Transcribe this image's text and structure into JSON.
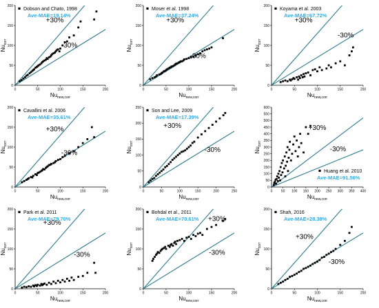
{
  "colors": {
    "line": "#2a7a8c",
    "marker": "#000000",
    "mae_text": "#33aadd",
    "axis": "#000000"
  },
  "chart_data": [
    {
      "type": "scatter",
      "legend": "Dobson and Chato, 1998",
      "mae": "Ave-MAE=19.14%",
      "xlabel": "Nu",
      "xlabel_sub": "new,corr",
      "ylabel": "Nu",
      "ylabel_sub": "corr",
      "xlim": [
        0,
        200
      ],
      "ylim": [
        0,
        200
      ],
      "xticks": [
        0,
        50,
        100,
        150,
        200
      ],
      "yticks": [
        0,
        50,
        100,
        150,
        200
      ],
      "upper_label": "+30%",
      "lower_label": "-30%",
      "upper_label_at": [
        88,
        158
      ],
      "lower_label_at": [
        120,
        95
      ],
      "legend_pos": "top-left",
      "x": [
        10,
        14,
        18,
        22,
        25,
        28,
        32,
        35,
        38,
        40,
        42,
        45,
        48,
        50,
        52,
        55,
        58,
        60,
        62,
        65,
        68,
        70,
        72,
        75,
        78,
        80,
        82,
        85,
        88,
        90,
        92,
        95,
        98,
        100,
        105,
        110,
        115,
        120,
        130,
        140,
        145,
        175,
        180
      ],
      "y": [
        10,
        13,
        17,
        20,
        24,
        26,
        30,
        33,
        36,
        38,
        40,
        44,
        46,
        48,
        50,
        52,
        55,
        58,
        60,
        62,
        64,
        68,
        66,
        70,
        72,
        75,
        78,
        80,
        82,
        85,
        88,
        90,
        85,
        92,
        100,
        108,
        110,
        120,
        125,
        145,
        160,
        165,
        185
      ]
    },
    {
      "type": "scatter",
      "legend": "Moser et al. 1998",
      "mae": "Ave-MAE=37.24%",
      "xlabel": "Nu",
      "xlabel_sub": "new,corr",
      "ylabel": "Nu",
      "ylabel_sub": "corr",
      "xlim": [
        0,
        200
      ],
      "ylim": [
        0,
        200
      ],
      "xticks": [
        0,
        50,
        100,
        150,
        200
      ],
      "yticks": [
        0,
        50,
        100,
        150,
        200
      ],
      "upper_label": "+30%",
      "lower_label": "-30%",
      "upper_label_at": [
        70,
        158
      ],
      "lower_label_at": [
        120,
        68
      ],
      "legend_pos": "top-left",
      "x": [
        15,
        20,
        25,
        28,
        30,
        35,
        38,
        40,
        42,
        45,
        48,
        50,
        52,
        55,
        58,
        60,
        62,
        65,
        68,
        70,
        72,
        75,
        78,
        80,
        82,
        85,
        88,
        90,
        95,
        100,
        105,
        110,
        115,
        120,
        125,
        130,
        135,
        140,
        145,
        150,
        175
      ],
      "y": [
        15,
        18,
        20,
        22,
        25,
        27,
        28,
        30,
        32,
        35,
        36,
        38,
        40,
        42,
        44,
        45,
        47,
        48,
        50,
        52,
        54,
        55,
        57,
        58,
        60,
        60,
        62,
        65,
        66,
        68,
        70,
        72,
        75,
        78,
        80,
        85,
        88,
        90,
        92,
        95,
        118
      ]
    },
    {
      "type": "scatter",
      "legend": "Koyama et al. 2003",
      "mae": "Ave-MAE=67.72%",
      "xlabel": "Nu",
      "xlabel_sub": "new,corr",
      "ylabel": "Nu",
      "ylabel_sub": "corr",
      "xlim": [
        0,
        200
      ],
      "ylim": [
        0,
        200
      ],
      "xticks": [
        0,
        50,
        100,
        150,
        200
      ],
      "yticks": [
        0,
        50,
        100,
        150,
        200
      ],
      "upper_label": "+30%",
      "lower_label": "-30%",
      "upper_label_at": [
        70,
        158
      ],
      "lower_label_at": [
        162,
        120
      ],
      "legend_pos": "top-left",
      "x": [
        20,
        25,
        30,
        35,
        40,
        42,
        45,
        48,
        50,
        55,
        58,
        60,
        62,
        65,
        68,
        70,
        72,
        75,
        80,
        85,
        90,
        95,
        100,
        105,
        110,
        120,
        125,
        130,
        140,
        150,
        160,
        170,
        175,
        178
      ],
      "y": [
        8,
        10,
        12,
        10,
        14,
        12,
        15,
        18,
        16,
        20,
        14,
        22,
        18,
        25,
        20,
        28,
        22,
        30,
        32,
        25,
        38,
        40,
        35,
        45,
        38,
        42,
        50,
        45,
        55,
        60,
        50,
        75,
        85,
        95
      ]
    },
    {
      "type": "scatter",
      "legend": "Cavallini et al. 2006",
      "mae": "Ave-MAE=35.61%",
      "xlabel": "Nu",
      "xlabel_sub": "new,corr",
      "ylabel": "Nu",
      "ylabel_sub": "corr",
      "xlim": [
        0,
        200
      ],
      "ylim": [
        0,
        200
      ],
      "xticks": [
        0,
        50,
        100,
        150,
        200
      ],
      "yticks": [
        0,
        50,
        100,
        150,
        200
      ],
      "upper_label": "+30%",
      "lower_label": "-30%",
      "upper_label_at": [
        88,
        140
      ],
      "lower_label_at": [
        120,
        80
      ],
      "legend_pos": "top-left",
      "x": [
        15,
        20,
        25,
        28,
        30,
        35,
        38,
        40,
        45,
        48,
        50,
        52,
        55,
        58,
        60,
        62,
        65,
        68,
        70,
        72,
        75,
        78,
        80,
        85,
        88,
        90,
        95,
        100,
        105,
        110,
        120,
        130,
        140,
        150,
        160,
        170,
        175
      ],
      "y": [
        12,
        15,
        18,
        20,
        22,
        25,
        24,
        28,
        32,
        30,
        35,
        36,
        38,
        40,
        42,
        45,
        44,
        48,
        50,
        52,
        55,
        56,
        58,
        60,
        62,
        65,
        68,
        70,
        75,
        78,
        85,
        90,
        100,
        110,
        120,
        150,
        125
      ]
    },
    {
      "type": "scatter",
      "legend": "Son and Lee, 2009",
      "mae": "Ave-MAE=17.39%",
      "xlabel": "Nu",
      "xlabel_sub": "new,corr",
      "ylabel": "Nu",
      "ylabel_sub": "corr",
      "xlim": [
        0,
        250
      ],
      "ylim": [
        0,
        250
      ],
      "xticks": [
        0,
        50,
        100,
        150,
        200,
        250
      ],
      "yticks": [
        0,
        50,
        100,
        150,
        200,
        250
      ],
      "upper_label": "+30%",
      "lower_label": "-30%",
      "upper_label_at": [
        80,
        185
      ],
      "lower_label_at": [
        190,
        110
      ],
      "legend_pos": "top-left",
      "x": [
        15,
        20,
        25,
        30,
        35,
        40,
        45,
        50,
        55,
        60,
        65,
        70,
        75,
        80,
        85,
        90,
        95,
        100,
        105,
        110,
        115,
        120,
        125,
        130,
        135,
        140,
        150,
        160,
        170,
        180,
        190,
        200,
        210,
        220,
        225
      ],
      "y": [
        15,
        20,
        25,
        28,
        35,
        40,
        45,
        50,
        55,
        62,
        66,
        72,
        78,
        85,
        90,
        95,
        100,
        105,
        110,
        112,
        115,
        120,
        125,
        130,
        138,
        142,
        155,
        165,
        175,
        185,
        195,
        205,
        215,
        225,
        232
      ]
    },
    {
      "type": "scatter",
      "legend": "Huang et al. 2010",
      "mae": "Ave-MAE=91.56%",
      "xlabel": "Nu",
      "xlabel_sub": "new,corr",
      "ylabel": "Nu",
      "ylabel_sub": "corr",
      "xlim": [
        0,
        400
      ],
      "ylim": [
        0,
        600
      ],
      "xticks": [
        0,
        50,
        100,
        150,
        200,
        250,
        300,
        350,
        400
      ],
      "yticks": [
        0,
        50,
        100,
        150,
        200,
        250,
        300,
        350,
        400,
        450,
        500,
        550,
        600
      ],
      "upper_label": "+30%",
      "lower_label": "-30%",
      "upper_label_at": [
        200,
        430
      ],
      "lower_label_at": [
        290,
        270
      ],
      "legend_pos": "bottom-right",
      "x": [
        10,
        12,
        15,
        18,
        20,
        22,
        25,
        28,
        30,
        32,
        35,
        38,
        40,
        42,
        45,
        48,
        50,
        55,
        58,
        60,
        62,
        65,
        68,
        70,
        72,
        75,
        78,
        80,
        85,
        90,
        95,
        100,
        105,
        110,
        115,
        120,
        125,
        130,
        140,
        150,
        160,
        170
      ],
      "y": [
        15,
        30,
        40,
        55,
        25,
        60,
        80,
        45,
        100,
        70,
        120,
        50,
        150,
        90,
        180,
        110,
        200,
        140,
        230,
        80,
        160,
        260,
        190,
        300,
        120,
        220,
        280,
        340,
        200,
        250,
        320,
        380,
        270,
        350,
        230,
        300,
        400,
        330,
        260,
        450,
        400,
        460
      ]
    },
    {
      "type": "scatter",
      "legend": "Park et al. 2011",
      "mae": "Ave-MAE=79.70%",
      "xlabel": "Nu",
      "xlabel_sub": "new,corr",
      "ylabel": "Nu",
      "ylabel_sub": "corr",
      "xlim": [
        0,
        200
      ],
      "ylim": [
        0,
        200
      ],
      "xticks": [
        0,
        50,
        100,
        150,
        200
      ],
      "yticks": [
        0,
        50,
        100,
        150,
        200
      ],
      "upper_label": "+30%",
      "lower_label": "-30%",
      "upper_label_at": [
        82,
        160
      ],
      "lower_label_at": [
        148,
        80
      ],
      "legend_pos": "top-left",
      "x": [
        15,
        20,
        25,
        30,
        35,
        40,
        42,
        45,
        48,
        50,
        55,
        58,
        60,
        62,
        65,
        70,
        75,
        80,
        85,
        90,
        95,
        100,
        105,
        110,
        115,
        120,
        125,
        130,
        140,
        150,
        160,
        175,
        178
      ],
      "y": [
        3,
        5,
        4,
        6,
        5,
        8,
        6,
        9,
        7,
        10,
        8,
        12,
        9,
        11,
        13,
        10,
        15,
        12,
        18,
        14,
        20,
        16,
        22,
        18,
        25,
        20,
        28,
        22,
        30,
        32,
        40,
        65,
        40
      ]
    },
    {
      "type": "scatter",
      "legend": "Bohdal et al., 2011",
      "mae": "Ave-MAE=70.61%",
      "xlabel": "Nu",
      "xlabel_sub": "new,corr",
      "ylabel": "Nu",
      "ylabel_sub": "corr",
      "xlim": [
        0,
        200
      ],
      "ylim": [
        0,
        200
      ],
      "xticks": [
        0,
        50,
        100,
        150,
        200
      ],
      "yticks": [
        0,
        50,
        100,
        150,
        200
      ],
      "upper_label": "+30%",
      "lower_label": "-30%",
      "upper_label_at": [
        162,
        170
      ],
      "lower_label_at": [
        162,
        85
      ],
      "legend_pos": "top-left",
      "x": [
        20,
        22,
        25,
        28,
        30,
        32,
        35,
        38,
        40,
        42,
        45,
        48,
        50,
        55,
        58,
        60,
        62,
        65,
        68,
        70,
        72,
        75,
        80,
        85,
        90,
        95,
        100,
        105,
        110,
        115,
        120,
        125,
        130,
        140,
        150,
        160,
        175,
        180
      ],
      "y": [
        70,
        75,
        80,
        85,
        88,
        92,
        90,
        95,
        98,
        100,
        102,
        105,
        100,
        108,
        105,
        110,
        112,
        108,
        115,
        118,
        112,
        120,
        122,
        125,
        120,
        128,
        130,
        125,
        135,
        132,
        138,
        140,
        135,
        150,
        155,
        160,
        170,
        175
      ]
    },
    {
      "type": "scatter",
      "legend": "Shah, 2016",
      "mae": "Ave-MAE=28.38%",
      "xlabel": "Nu",
      "xlabel_sub": "new,corr",
      "ylabel": "Nu",
      "ylabel_sub": "corr",
      "xlim": [
        0,
        200
      ],
      "ylim": [
        0,
        200
      ],
      "xticks": [
        0,
        50,
        100,
        150,
        200
      ],
      "yticks": [
        0,
        50,
        100,
        150,
        200
      ],
      "upper_label": "+30%",
      "lower_label": "-30%",
      "upper_label_at": [
        72,
        125
      ],
      "lower_label_at": [
        142,
        62
      ],
      "legend_pos": "top-left",
      "x": [
        15,
        20,
        25,
        30,
        35,
        40,
        45,
        50,
        55,
        60,
        65,
        70,
        75,
        80,
        85,
        90,
        95,
        100,
        105,
        110,
        115,
        120,
        125,
        130,
        135,
        140,
        150,
        160,
        170,
        175
      ],
      "y": [
        12,
        15,
        18,
        22,
        25,
        30,
        32,
        35,
        38,
        42,
        45,
        50,
        52,
        55,
        58,
        62,
        65,
        68,
        72,
        78,
        80,
        85,
        88,
        92,
        95,
        100,
        110,
        120,
        140,
        155
      ]
    }
  ]
}
